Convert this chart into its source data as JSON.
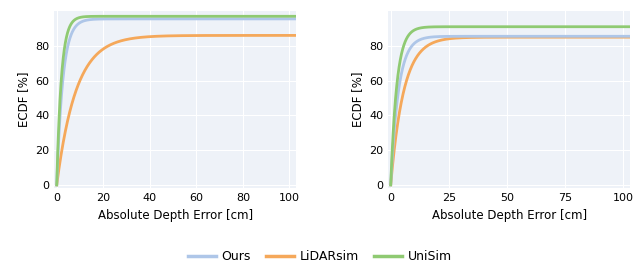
{
  "color_ours": "#aec6e8",
  "color_lidarsim": "#f5a85a",
  "color_unisim": "#8fca72",
  "linewidth": 2.0,
  "ylabel": "ECDF [%]",
  "xlabel": "Absolute Depth Error [cm]",
  "legend_labels": [
    "Ours",
    "LiDARsim",
    "UniSim"
  ],
  "background_color": "#eef2f8",
  "grid_color": "#ffffff",
  "subplot1": {
    "xticks": [
      0,
      20,
      40,
      60,
      80,
      100
    ],
    "yticks": [
      0,
      20,
      40,
      60,
      80
    ],
    "xlim": [
      -1,
      103
    ],
    "ylim": [
      -2,
      100
    ],
    "ours": {
      "a": 0.92,
      "b": 0.38,
      "max_val": 95.5
    },
    "lidarsim": {
      "a": 0.92,
      "b": 0.12,
      "max_val": 86.0
    },
    "unisim": {
      "a": 0.92,
      "b": 0.5,
      "max_val": 97.0
    }
  },
  "subplot2": {
    "xticks": [
      0,
      25,
      50,
      75,
      100
    ],
    "yticks": [
      0,
      20,
      40,
      60,
      80
    ],
    "xlim": [
      -1,
      103
    ],
    "ylim": [
      -2,
      100
    ],
    "ours": {
      "a": 0.92,
      "b": 0.3,
      "max_val": 85.5
    },
    "lidarsim": {
      "a": 0.92,
      "b": 0.18,
      "max_val": 85.0
    },
    "unisim": {
      "a": 0.92,
      "b": 0.38,
      "max_val": 91.0
    }
  }
}
